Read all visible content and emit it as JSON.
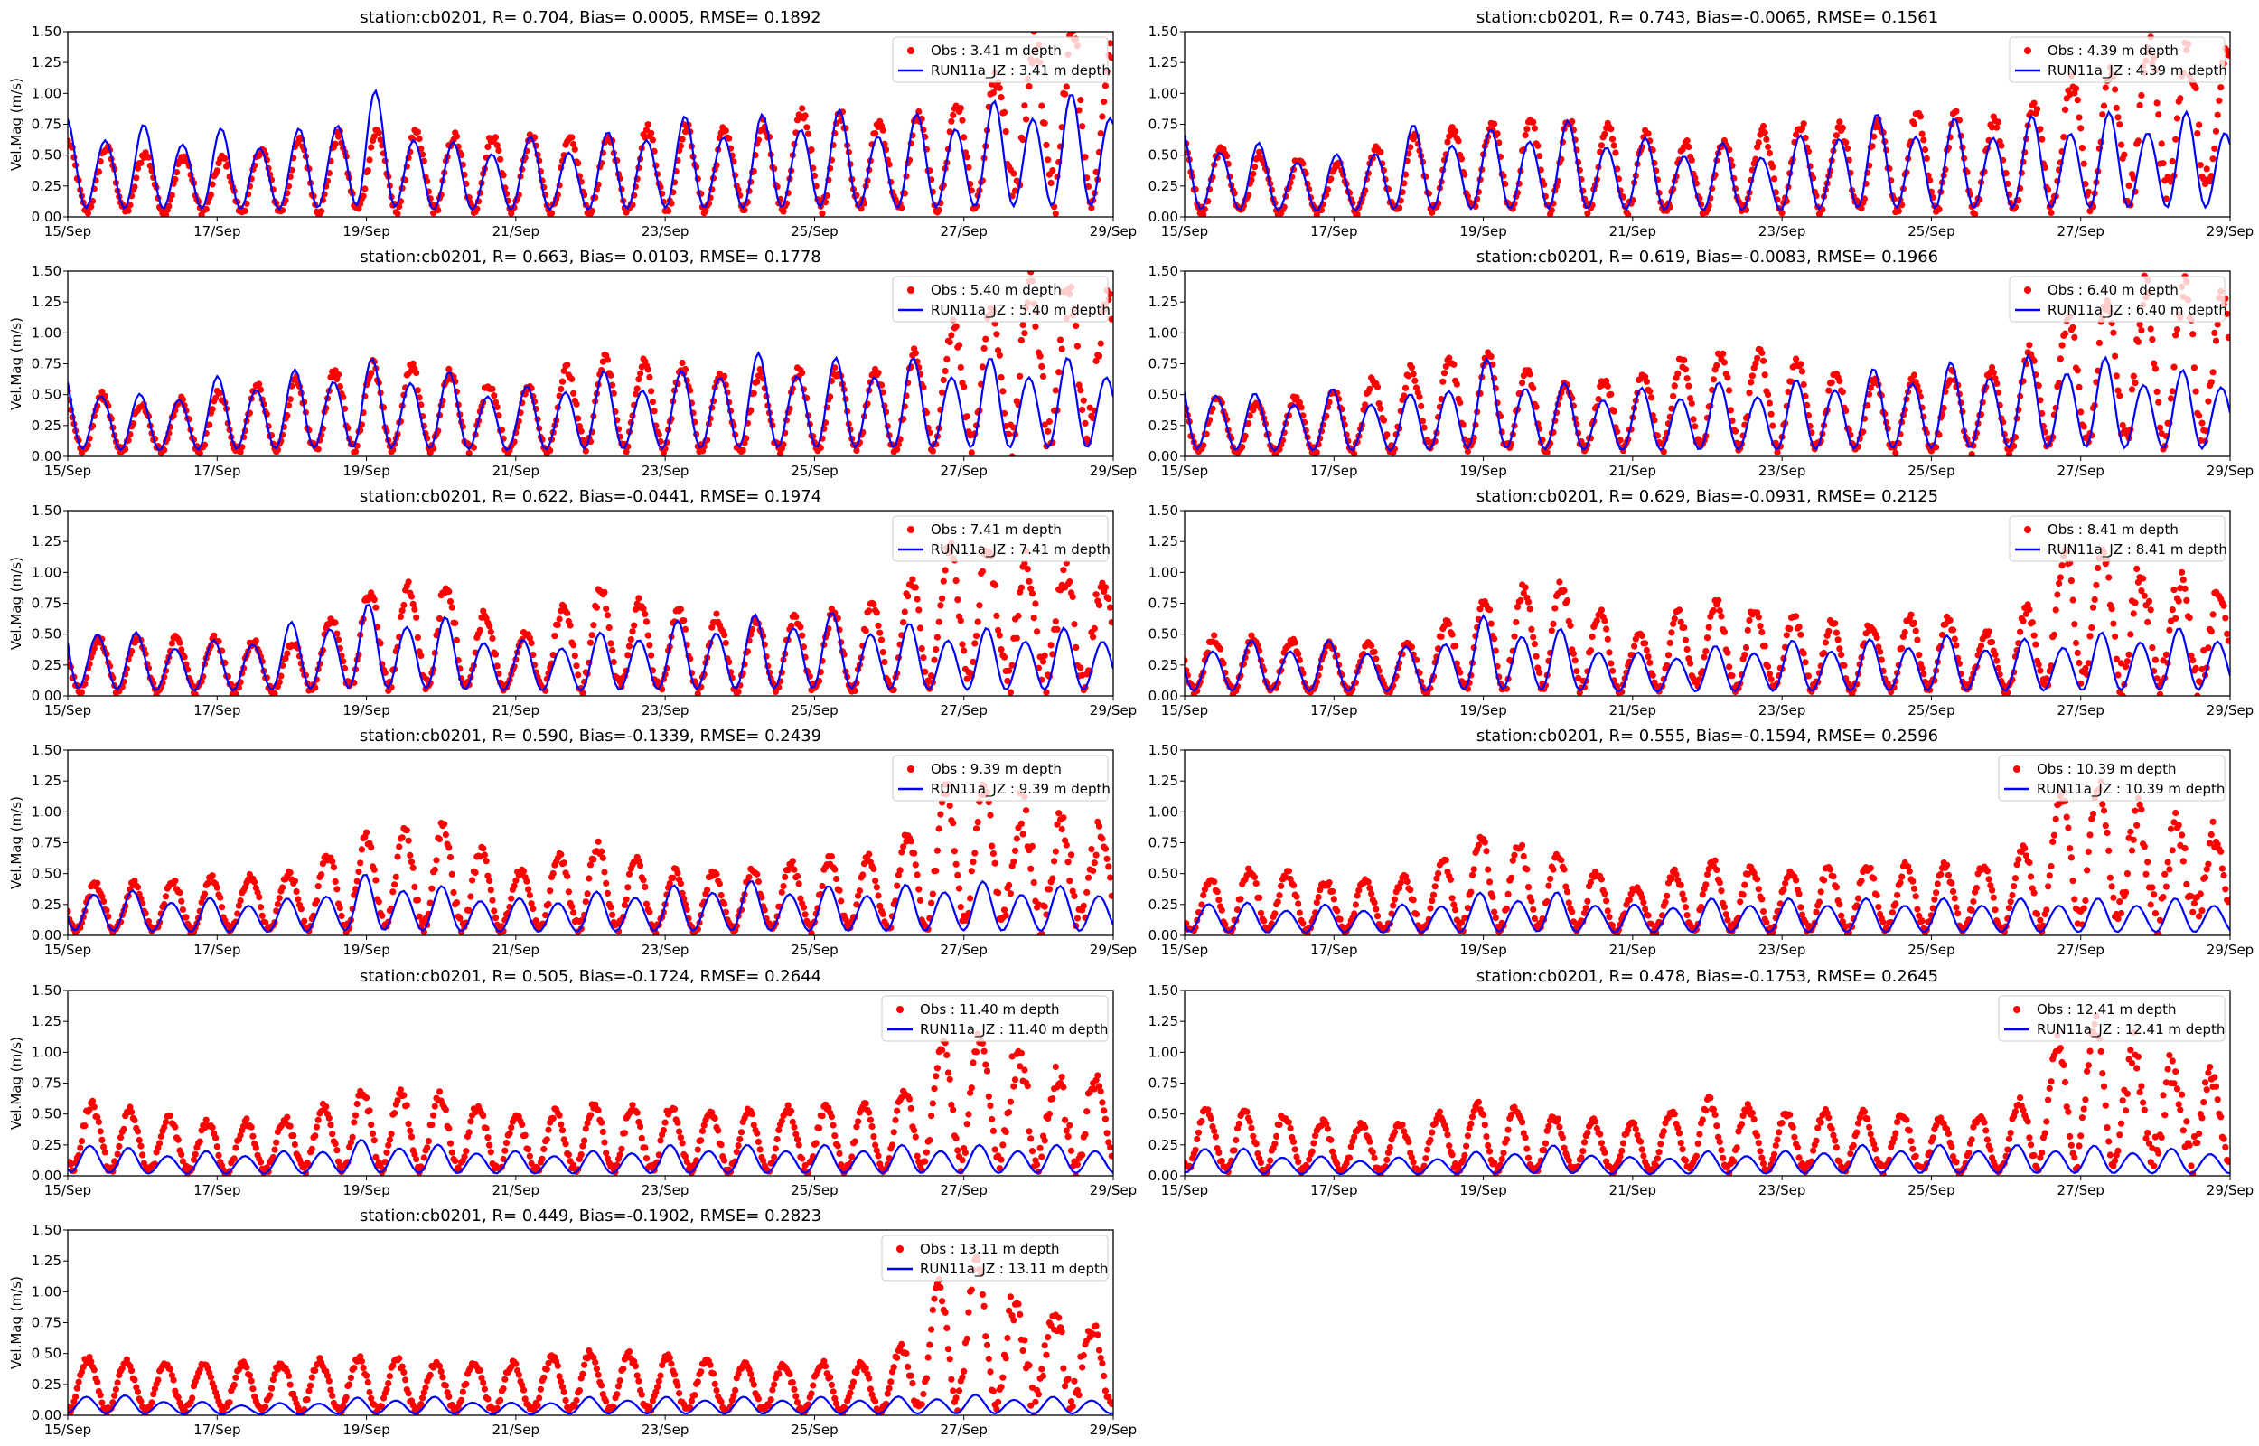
{
  "chart_data": {
    "type": "scatter+line",
    "layout": "6 rows x 2 columns (11 panels)",
    "ylabel": "Vel.Mag (m/s)",
    "ylim": [
      0,
      1.5
    ],
    "yticks": [
      "0.00",
      "0.25",
      "0.50",
      "0.75",
      "1.00",
      "1.25",
      "1.50"
    ],
    "xlim": [
      "15/Sep",
      "29/Sep"
    ],
    "xticks": [
      "15/Sep",
      "17/Sep",
      "19/Sep",
      "21/Sep",
      "23/Sep",
      "25/Sep",
      "27/Sep",
      "29/Sep"
    ],
    "grid": false,
    "legend_position": "top-right",
    "colors": {
      "obs": "#ff0000",
      "model": "#0000ff"
    },
    "days": [
      "15/Sep",
      "16/Sep",
      "17/Sep",
      "18/Sep",
      "19/Sep",
      "20/Sep",
      "21/Sep",
      "22/Sep",
      "23/Sep",
      "24/Sep",
      "25/Sep",
      "26/Sep",
      "27/Sep",
      "28/Sep"
    ],
    "panels": [
      {
        "title": "station:cb0201, R= 0.704, Bias= 0.0005, RMSE= 0.1892",
        "obs_label": "Obs : 3.41 m depth",
        "model_label": "RUN11a_JZ : 3.41 m depth",
        "model_daily_peak": [
          0.8,
          0.75,
          0.72,
          0.68,
          1.08,
          0.6,
          0.65,
          0.65,
          0.82,
          0.8,
          0.9,
          0.8,
          0.9,
          1.0
        ],
        "obs_daily_peak": [
          0.65,
          0.55,
          0.5,
          0.65,
          0.75,
          0.7,
          0.7,
          0.65,
          0.8,
          0.75,
          0.95,
          0.8,
          1.0,
          1.45
        ]
      },
      {
        "title": "station:cb0201, R= 0.743, Bias=-0.0065, RMSE= 0.1561",
        "obs_label": "Obs : 4.39 m depth",
        "model_label": "RUN11a_JZ : 4.39 m depth",
        "model_daily_peak": [
          0.7,
          0.6,
          0.5,
          0.75,
          0.7,
          0.8,
          0.65,
          0.6,
          0.6,
          0.85,
          0.8,
          0.8,
          0.85,
          0.85
        ],
        "obs_daily_peak": [
          0.65,
          0.55,
          0.45,
          0.7,
          0.8,
          0.85,
          0.75,
          0.6,
          0.8,
          0.8,
          0.9,
          0.85,
          1.2,
          1.4
        ]
      },
      {
        "title": "station:cb0201, R= 0.663, Bias= 0.0103, RMSE= 0.1778",
        "obs_label": "Obs : 5.40 m depth",
        "model_label": "RUN11a_JZ : 5.40 m depth",
        "model_daily_peak": [
          0.7,
          0.5,
          0.65,
          0.7,
          0.8,
          0.7,
          0.55,
          0.7,
          0.65,
          0.85,
          0.8,
          0.8,
          0.8,
          0.8
        ],
        "obs_daily_peak": [
          0.6,
          0.45,
          0.55,
          0.65,
          0.8,
          0.75,
          0.55,
          0.85,
          0.8,
          0.7,
          0.75,
          0.75,
          1.2,
          1.4
        ]
      },
      {
        "title": "station:cb0201, R= 0.619, Bias=-0.0083, RMSE= 0.1966",
        "obs_label": "Obs : 6.40 m depth",
        "model_label": "RUN11a_JZ : 6.40 m depth",
        "model_daily_peak": [
          0.7,
          0.5,
          0.55,
          0.5,
          0.8,
          0.6,
          0.55,
          0.6,
          0.6,
          0.7,
          0.75,
          0.8,
          0.85,
          0.7
        ],
        "obs_daily_peak": [
          0.55,
          0.45,
          0.55,
          0.75,
          0.9,
          0.6,
          0.7,
          0.9,
          0.9,
          0.65,
          0.7,
          0.75,
          1.3,
          1.4
        ]
      },
      {
        "title": "station:cb0201, R= 0.622, Bias=-0.0441, RMSE= 0.1974",
        "obs_label": "Obs : 7.41 m depth",
        "model_label": "RUN11a_JZ : 7.41 m depth",
        "model_daily_peak": [
          0.7,
          0.5,
          0.45,
          0.6,
          0.75,
          0.65,
          0.45,
          0.5,
          0.6,
          0.65,
          0.7,
          0.6,
          0.55,
          0.55
        ],
        "obs_daily_peak": [
          0.5,
          0.5,
          0.5,
          0.45,
          0.9,
          1.0,
          0.5,
          0.95,
          0.75,
          0.65,
          0.7,
          0.8,
          1.45,
          0.95
        ]
      },
      {
        "title": "station:cb0201, R= 0.629, Bias=-0.0931, RMSE= 0.2125",
        "obs_label": "Obs : 8.41 m depth",
        "model_label": "RUN11a_JZ : 8.41 m depth",
        "model_daily_peak": [
          0.45,
          0.45,
          0.45,
          0.4,
          0.65,
          0.55,
          0.35,
          0.4,
          0.45,
          0.45,
          0.5,
          0.45,
          0.5,
          0.55
        ],
        "obs_daily_peak": [
          0.5,
          0.5,
          0.45,
          0.45,
          0.85,
          1.0,
          0.5,
          0.85,
          0.7,
          0.6,
          0.7,
          0.5,
          1.45,
          0.9
        ]
      },
      {
        "title": "station:cb0201, R= 0.590, Bias=-0.1339, RMSE= 0.2439",
        "obs_label": "Obs : 9.39 m depth",
        "model_label": "RUN11a_JZ : 9.39 m depth",
        "model_daily_peak": [
          0.45,
          0.35,
          0.3,
          0.3,
          0.5,
          0.4,
          0.3,
          0.35,
          0.4,
          0.45,
          0.4,
          0.4,
          0.45,
          0.4
        ],
        "obs_daily_peak": [
          0.45,
          0.45,
          0.5,
          0.55,
          0.85,
          0.95,
          0.55,
          0.8,
          0.55,
          0.55,
          0.65,
          0.7,
          1.45,
          0.9
        ]
      },
      {
        "title": "station:cb0201, R= 0.555, Bias=-0.1594, RMSE= 0.2596",
        "obs_label": "Obs : 10.39 m depth",
        "model_label": "RUN11a_JZ : 10.39 m depth",
        "model_daily_peak": [
          0.35,
          0.25,
          0.25,
          0.25,
          0.35,
          0.35,
          0.25,
          0.3,
          0.3,
          0.3,
          0.3,
          0.3,
          0.3,
          0.3
        ],
        "obs_daily_peak": [
          0.4,
          0.6,
          0.45,
          0.5,
          0.85,
          0.7,
          0.4,
          0.65,
          0.55,
          0.6,
          0.6,
          0.6,
          1.45,
          0.85
        ]
      },
      {
        "title": "station:cb0201, R= 0.505, Bias=-0.1724, RMSE= 0.2644",
        "obs_label": "Obs : 11.40 m depth",
        "model_label": "RUN11a_JZ : 11.40 m depth",
        "model_daily_peak": [
          0.35,
          0.2,
          0.2,
          0.2,
          0.3,
          0.25,
          0.2,
          0.2,
          0.25,
          0.25,
          0.25,
          0.25,
          0.25,
          0.25
        ],
        "obs_daily_peak": [
          0.65,
          0.55,
          0.45,
          0.5,
          0.75,
          0.7,
          0.5,
          0.6,
          0.6,
          0.55,
          0.6,
          0.6,
          1.35,
          0.85
        ]
      },
      {
        "title": "station:cb0201, R= 0.478, Bias=-0.1753, RMSE= 0.2645",
        "obs_label": "Obs : 12.41 m depth",
        "model_label": "RUN11a_JZ : 12.41 m depth",
        "model_daily_peak": [
          0.3,
          0.2,
          0.15,
          0.15,
          0.2,
          0.25,
          0.15,
          0.2,
          0.2,
          0.25,
          0.25,
          0.25,
          0.25,
          0.22
        ],
        "obs_daily_peak": [
          0.6,
          0.55,
          0.45,
          0.45,
          0.65,
          0.5,
          0.45,
          0.65,
          0.55,
          0.55,
          0.5,
          0.5,
          1.45,
          0.85
        ]
      },
      {
        "title": "station:cb0201, R= 0.449, Bias=-0.1902, RMSE= 0.2823",
        "obs_label": "Obs : 13.11 m depth",
        "model_label": "RUN11a_JZ : 13.11 m depth",
        "model_daily_peak": [
          0.2,
          0.15,
          0.1,
          0.1,
          0.15,
          0.15,
          0.1,
          0.15,
          0.15,
          0.15,
          0.15,
          0.15,
          0.17,
          0.15
        ],
        "obs_daily_peak": [
          0.5,
          0.45,
          0.45,
          0.45,
          0.5,
          0.45,
          0.45,
          0.55,
          0.5,
          0.45,
          0.45,
          0.45,
          1.45,
          0.75
        ]
      }
    ]
  }
}
